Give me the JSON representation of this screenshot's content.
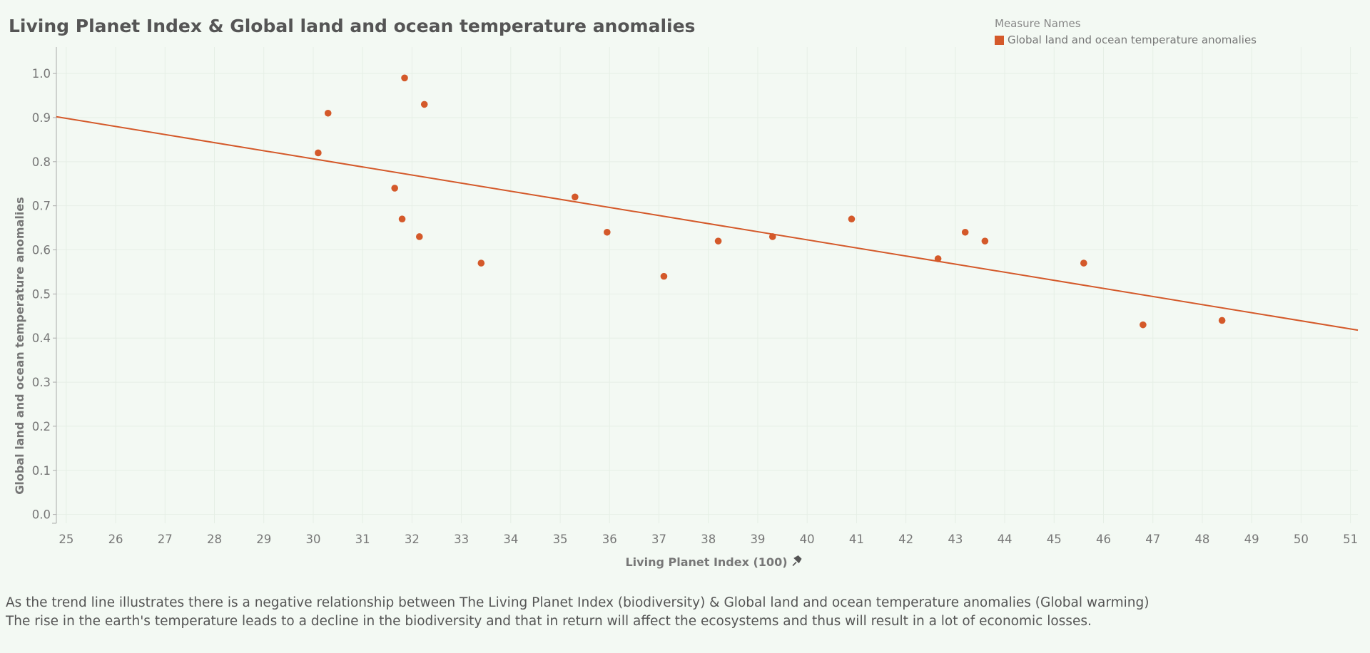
{
  "title": "Living Planet Index & Global land and ocean temperature anomalies",
  "legend": {
    "title": "Measure Names",
    "item": "Global land and ocean temperature anomalies",
    "color": "#d4592a"
  },
  "caption": {
    "line1": "As the trend line illustrates there is a negative relationship between The Living Planet Index (biodiversity) & Global land and ocean temperature anomalies (Global warming)",
    "line2": "The rise in the earth's temperature leads to a decline in the biodiversity and that in return will affect the ecosystems and thus will result in a lot of economic losses."
  },
  "pin_icon": "pin-icon",
  "chart_data": {
    "type": "scatter",
    "title": "Living Planet Index & Global land and ocean temperature anomalies",
    "xlabel": "Living Planet Index (100)",
    "ylabel": "Global land and ocean temperature anomalies",
    "xlim": [
      24.8,
      51.15
    ],
    "ylim": [
      -0.02,
      1.06
    ],
    "xticks": [
      25,
      26,
      27,
      28,
      29,
      30,
      31,
      32,
      33,
      34,
      35,
      36,
      37,
      38,
      39,
      40,
      41,
      42,
      43,
      44,
      45,
      46,
      47,
      48,
      49,
      50,
      51
    ],
    "yticks": [
      0.0,
      0.1,
      0.2,
      0.3,
      0.4,
      0.5,
      0.6,
      0.7,
      0.8,
      0.9,
      1.0
    ],
    "ytick_labels": [
      "0.0",
      "0.1",
      "0.2",
      "0.3",
      "0.4",
      "0.5",
      "0.6",
      "0.7",
      "0.8",
      "0.9",
      "1.0"
    ],
    "grid": true,
    "color": "#d4592a",
    "series": [
      {
        "name": "Global land and ocean temperature anomalies",
        "points": [
          {
            "x": 30.1,
            "y": 0.82
          },
          {
            "x": 30.3,
            "y": 0.91
          },
          {
            "x": 31.65,
            "y": 0.74
          },
          {
            "x": 31.8,
            "y": 0.67
          },
          {
            "x": 31.85,
            "y": 0.99
          },
          {
            "x": 32.15,
            "y": 0.63
          },
          {
            "x": 32.25,
            "y": 0.93
          },
          {
            "x": 33.4,
            "y": 0.57
          },
          {
            "x": 35.3,
            "y": 0.72
          },
          {
            "x": 35.95,
            "y": 0.64
          },
          {
            "x": 37.1,
            "y": 0.54
          },
          {
            "x": 38.2,
            "y": 0.62
          },
          {
            "x": 39.3,
            "y": 0.63
          },
          {
            "x": 40.9,
            "y": 0.67
          },
          {
            "x": 42.65,
            "y": 0.58
          },
          {
            "x": 43.2,
            "y": 0.64
          },
          {
            "x": 43.6,
            "y": 0.62
          },
          {
            "x": 45.6,
            "y": 0.57
          },
          {
            "x": 46.8,
            "y": 0.43
          },
          {
            "x": 48.4,
            "y": 0.44
          }
        ]
      }
    ],
    "trend_line": {
      "x": [
        24.8,
        51.15
      ],
      "y": [
        0.902,
        0.418
      ]
    }
  }
}
